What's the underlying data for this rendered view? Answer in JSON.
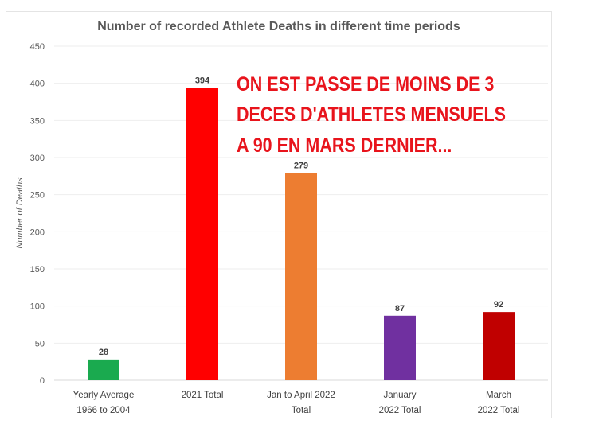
{
  "chart_data": {
    "type": "bar",
    "title": "Number of recorded Athlete Deaths in different time periods",
    "xlabel": "",
    "ylabel": "Number of Deaths",
    "ylim": [
      0,
      450
    ],
    "yticks": [
      0,
      50,
      100,
      150,
      200,
      250,
      300,
      350,
      400,
      450
    ],
    "grid": true,
    "categories": [
      [
        "Yearly Average",
        "1966 to 2004"
      ],
      [
        "2021 Total"
      ],
      [
        "Jan to April 2022",
        "Total"
      ],
      [
        "January",
        "2022 Total"
      ],
      [
        "March",
        "2022 Total"
      ]
    ],
    "values": [
      28,
      394,
      279,
      87,
      92
    ],
    "colors": [
      "#1aaa4f",
      "#ff0000",
      "#ed7d31",
      "#7030a0",
      "#c00000"
    ]
  },
  "annotation": {
    "lines": [
      "ON EST PASSE DE MOINS DE 3",
      "DECES D'ATHLETES MENSUELS",
      "A 90 EN MARS DERNIER..."
    ],
    "color": "#e8141c"
  }
}
